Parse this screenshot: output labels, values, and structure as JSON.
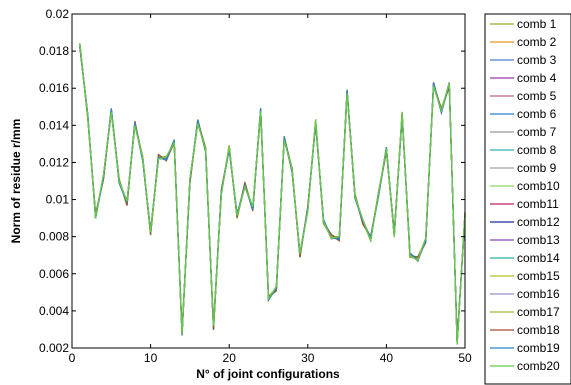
{
  "chart_data": {
    "type": "line",
    "title": "",
    "xlabel": "N° of joint configurations",
    "ylabel": "Norm of residue r/mm",
    "xlim": [
      0,
      50
    ],
    "ylim": [
      0.002,
      0.02
    ],
    "xticks": [
      "0",
      "10",
      "20",
      "30",
      "40",
      "50"
    ],
    "yticks": [
      "0.002",
      "0.004",
      "0.006",
      "0.008",
      "0.01",
      "0.012",
      "0.014",
      "0.016",
      "0.018",
      "0.02"
    ],
    "grid": false,
    "legend_position": "outside-right",
    "x": [
      1,
      2,
      3,
      4,
      5,
      6,
      7,
      8,
      9,
      10,
      11,
      12,
      13,
      14,
      15,
      16,
      17,
      18,
      19,
      20,
      21,
      22,
      23,
      24,
      25,
      26,
      27,
      28,
      29,
      30,
      31,
      32,
      33,
      34,
      35,
      36,
      37,
      38,
      39,
      40,
      41,
      42,
      43,
      44,
      45,
      46,
      47,
      48,
      49,
      50
    ],
    "base": [
      0.0183,
      0.0145,
      0.0091,
      0.0112,
      0.0148,
      0.011,
      0.0098,
      0.0141,
      0.0122,
      0.0082,
      0.0123,
      0.0122,
      0.0131,
      0.0028,
      0.011,
      0.0142,
      0.0127,
      0.0031,
      0.0104,
      0.0128,
      0.0091,
      0.0108,
      0.0095,
      0.0148,
      0.0047,
      0.0052,
      0.0133,
      0.0116,
      0.007,
      0.0095,
      0.0142,
      0.0088,
      0.008,
      0.0079,
      0.0158,
      0.0102,
      0.0088,
      0.0079,
      0.0103,
      0.0127,
      0.0081,
      0.0146,
      0.007,
      0.0068,
      0.0078,
      0.0162,
      0.0148,
      0.0162,
      0.0023,
      0.0092
    ],
    "series": [
      {
        "name": "comb 1",
        "color": "#9aa81c"
      },
      {
        "name": "comb 2",
        "color": "#e8961c"
      },
      {
        "name": "comb 3",
        "color": "#4a7fd0"
      },
      {
        "name": "comb 4",
        "color": "#9b3aa6"
      },
      {
        "name": "comb 5",
        "color": "#c46080"
      },
      {
        "name": "comb 6",
        "color": "#2e7fd6"
      },
      {
        "name": "comb 7",
        "color": "#9a9a9a"
      },
      {
        "name": "comb 8",
        "color": "#35b0b0"
      },
      {
        "name": "comb 9",
        "color": "#9aa49a"
      },
      {
        "name": "comb10",
        "color": "#8cd660"
      },
      {
        "name": "comb11",
        "color": "#c0206a"
      },
      {
        "name": "comb12",
        "color": "#1a2a9a"
      },
      {
        "name": "comb13",
        "color": "#8a4ac0"
      },
      {
        "name": "comb14",
        "color": "#2ab0a0"
      },
      {
        "name": "comb15",
        "color": "#b8c020"
      },
      {
        "name": "comb16",
        "color": "#9a90d0"
      },
      {
        "name": "comb17",
        "color": "#a8b830"
      },
      {
        "name": "comb18",
        "color": "#a0522d"
      },
      {
        "name": "comb19",
        "color": "#2a80d0"
      },
      {
        "name": "comb20",
        "color": "#66cc44"
      }
    ]
  }
}
